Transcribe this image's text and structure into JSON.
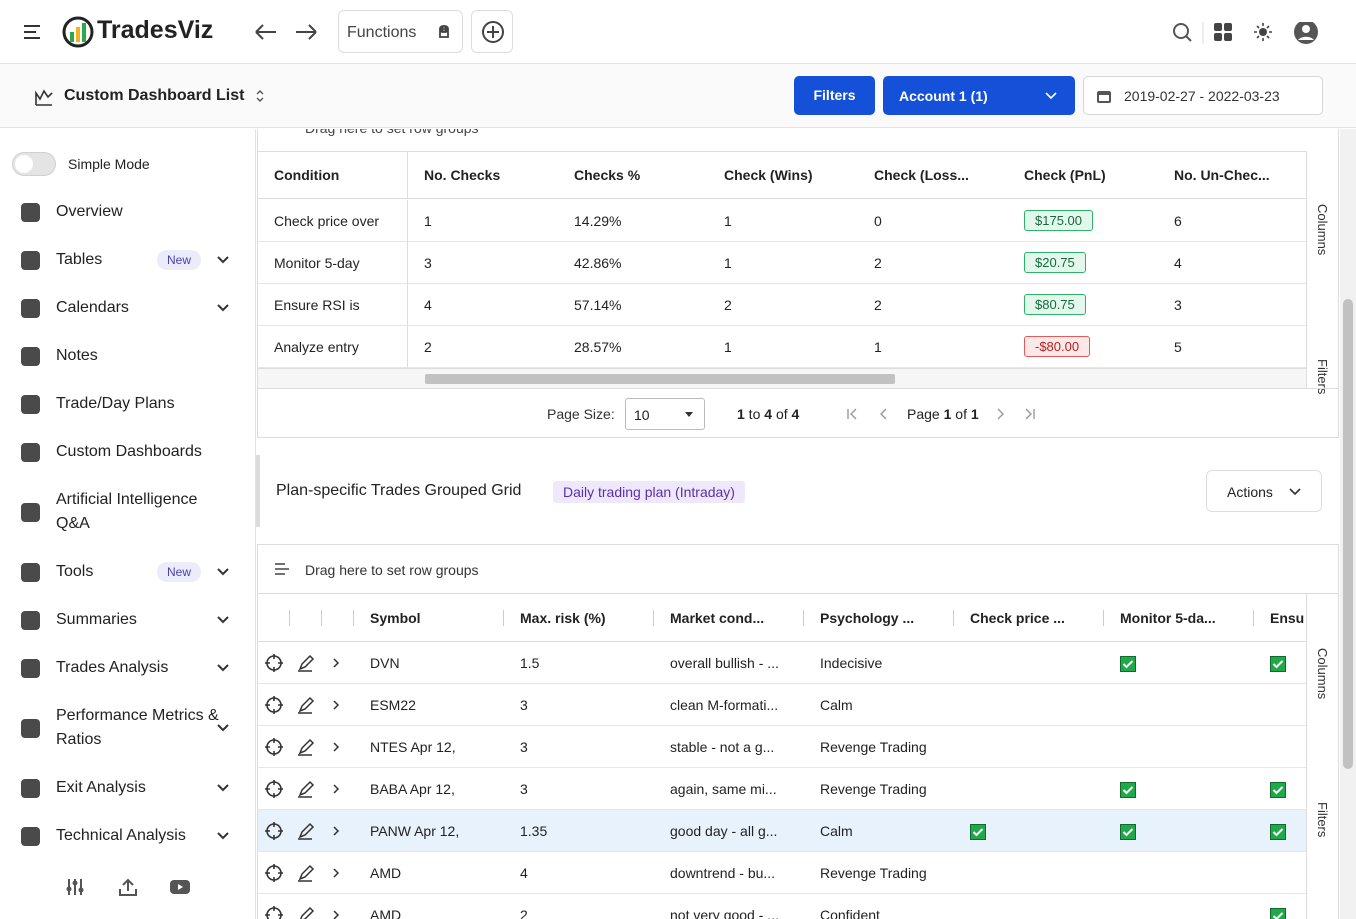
{
  "topbar": {
    "brand": "TradesViz",
    "functions": "Functions"
  },
  "subbar": {
    "dashboard_list": "Custom Dashboard List",
    "filters": "Filters",
    "account": "Account 1 (1)",
    "date_range": "2019-02-27 - 2022-03-23"
  },
  "sidebar": {
    "simple_mode": "Simple Mode",
    "items": [
      {
        "label": "Overview"
      },
      {
        "label": "Tables",
        "badge": "New",
        "expand": true
      },
      {
        "label": "Calendars",
        "expand": true
      },
      {
        "label": "Notes"
      },
      {
        "label": "Trade/Day Plans"
      },
      {
        "label": "Custom Dashboards"
      },
      {
        "label": "Artificial Intelligence Q&A"
      },
      {
        "label": "Tools",
        "badge": "New",
        "expand": true
      },
      {
        "label": "Summaries",
        "expand": true
      },
      {
        "label": "Trades Analysis",
        "expand": true
      },
      {
        "label": "Performance Metrics & Ratios",
        "expand": true
      },
      {
        "label": "Exit Analysis",
        "expand": true
      },
      {
        "label": "Technical Analysis",
        "expand": true
      }
    ]
  },
  "grid1": {
    "drag_hint": "Drag here to set row groups",
    "headers": [
      "Condition",
      "No. Checks",
      "Checks %",
      "Check (Wins)",
      "Check (Loss...",
      "Check (PnL)",
      "No. Un-Chec..."
    ],
    "rows": [
      [
        "Check price over",
        "1",
        "14.29%",
        "1",
        "0",
        "$175.00",
        "6"
      ],
      [
        "Monitor 5-day",
        "3",
        "42.86%",
        "1",
        "2",
        "$20.75",
        "4"
      ],
      [
        "Ensure RSI is",
        "4",
        "57.14%",
        "2",
        "2",
        "$80.75",
        "3"
      ],
      [
        "Analyze entry",
        "2",
        "28.57%",
        "1",
        "1",
        "-$80.00",
        "5"
      ]
    ],
    "page_size_label": "Page Size:",
    "page_size": "10",
    "range": [
      "1",
      " to ",
      "4",
      " of ",
      "4"
    ],
    "page": [
      "Page ",
      "1",
      " of ",
      "1"
    ],
    "side": [
      "Columns",
      "Filters"
    ]
  },
  "section2": {
    "title": "Plan-specific Trades Grouped Grid",
    "badge": "Daily trading plan (Intraday)",
    "actions": "Actions"
  },
  "grid2": {
    "drag_hint": "Drag here to set row groups",
    "headers": [
      "Symbol",
      "Max. risk (%)",
      "Market cond...",
      "Psychology ...",
      "Check price ...",
      "Monitor 5-da...",
      "Ensu"
    ],
    "rows": [
      {
        "cells": [
          "DVN",
          "1.5",
          "overall bullish - ...",
          "Indecisive"
        ],
        "checks": [
          false,
          true,
          true
        ]
      },
      {
        "cells": [
          "ESM22",
          "3",
          "clean M-formati...",
          "Calm"
        ],
        "checks": [
          false,
          false,
          false
        ]
      },
      {
        "cells": [
          "NTES Apr 12,",
          "3",
          "stable - not a g...",
          "Revenge Trading"
        ],
        "checks": [
          false,
          false,
          false
        ]
      },
      {
        "cells": [
          "BABA Apr 12,",
          "3",
          "again, same mi...",
          "Revenge Trading"
        ],
        "checks": [
          false,
          true,
          true
        ]
      },
      {
        "cells": [
          "PANW Apr 12,",
          "1.35",
          "good day - all g...",
          "Calm"
        ],
        "checks": [
          true,
          true,
          true
        ],
        "selected": true
      },
      {
        "cells": [
          "AMD",
          "4",
          "downtrend - bu...",
          "Revenge Trading"
        ],
        "checks": [
          false,
          false,
          false
        ]
      },
      {
        "cells": [
          "AMD",
          "2",
          "not very good - ...",
          "Confident"
        ],
        "checks": [
          false,
          false,
          true
        ]
      }
    ],
    "side": [
      "Columns",
      "Filters"
    ]
  }
}
